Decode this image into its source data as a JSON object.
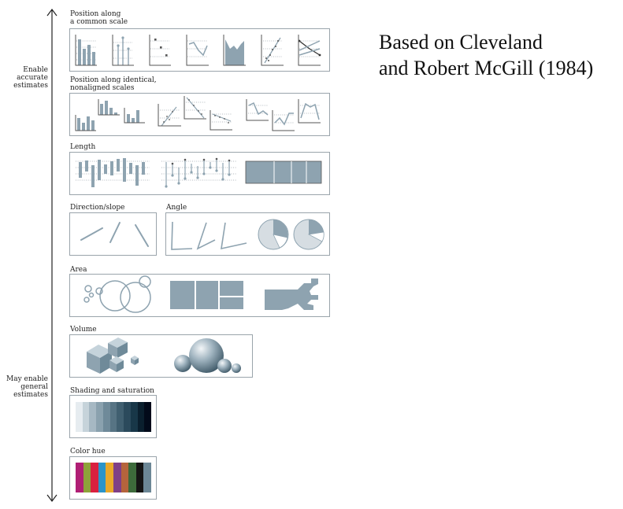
{
  "title_lines": [
    "Based on Cleveland",
    "and Robert McGill (1984)"
  ],
  "scale": {
    "top_label": [
      "Enable",
      "accurate",
      "estimates"
    ],
    "bottom_label": [
      "May enable",
      "general",
      "estimates"
    ]
  },
  "categories": {
    "common_scale": [
      "Position along",
      "a common scale"
    ],
    "nonaligned": [
      "Position along identical,",
      "nonaligned scales"
    ],
    "length": "Length",
    "direction": "Direction/slope",
    "angle": "Angle",
    "area": "Area",
    "volume": "Volume",
    "shading": "Shading and saturation",
    "hue": "Color hue"
  },
  "colors": {
    "accent": "#8ea3b0",
    "shading_ramp": [
      "#e6ecf0",
      "#c6d3da",
      "#a6b8c3",
      "#8aa1ae",
      "#6f8a99",
      "#577484",
      "#405f70",
      "#2b4a5c",
      "#183748",
      "#0a1f2e",
      "#020a1a"
    ],
    "hue_swatches": [
      "#b01f75",
      "#8ea23a",
      "#d9213e",
      "#2a94c9",
      "#e9a82a",
      "#7f3f86",
      "#b5643c",
      "#3d6b3b",
      "#151515",
      "#6c8796"
    ]
  }
}
